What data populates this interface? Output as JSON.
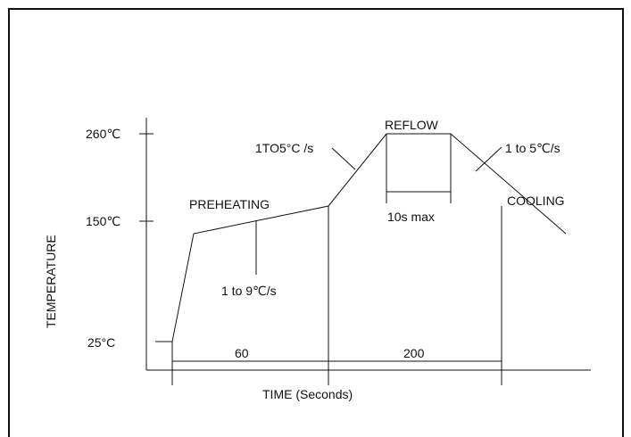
{
  "chart_data": {
    "type": "line",
    "xlabel": "TIME (Seconds)",
    "ylabel": "TEMPERATURE",
    "y_ticks": [
      "260℃",
      "150℃",
      "25°C"
    ],
    "x_interval_labels": [
      "60",
      "200"
    ],
    "series": [
      {
        "points": [
          {
            "x": 0,
            "y": 25
          },
          {
            "x": 6,
            "y": 25
          },
          {
            "x": 15,
            "y": 138
          },
          {
            "x": 105,
            "y": 165
          },
          {
            "x": 138,
            "y": 255
          },
          {
            "x": 190,
            "y": 255
          },
          {
            "x": 250,
            "y": 138
          }
        ]
      }
    ],
    "annotations": {
      "preheating": "PREHEATING",
      "reflow": "REFLOW",
      "cooling": "COOLING",
      "preheat_rate": "1 to 9℃/s",
      "ramp_rate": "1TO5°C /s",
      "cool_rate": "1 to 5℃/s",
      "reflow_time": "10s max"
    }
  }
}
